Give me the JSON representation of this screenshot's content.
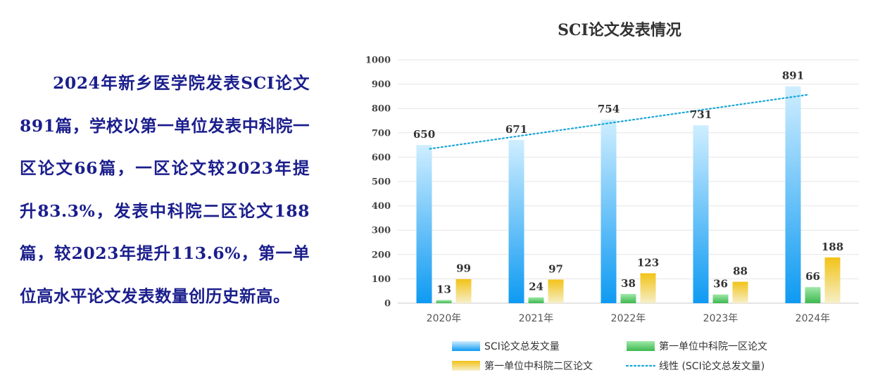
{
  "summary": {
    "text": "2024年新乡医学院发表SCI论文891篇，学校以第一单位发表中科院一区论文66篇，一区论文较2023年提升83.3%，发表中科院二区论文188篇，较2023年提升113.6%，第一单位高水平论文发表数量创历史新高。"
  },
  "colors": {
    "text": "#1b1e8c",
    "sci_top": "#cfeeff",
    "sci_bottom": "#0e9af2",
    "q1_top": "#9fe8a8",
    "q1_bottom": "#3db84f",
    "q2_top": "#f6efc8",
    "q2_bottom": "#f2c318",
    "trend": "#1ba6d8"
  },
  "chart_data": {
    "type": "bar",
    "title": "SCI论文发表情况",
    "categories": [
      "2020年",
      "2021年",
      "2022年",
      "2023年",
      "2024年"
    ],
    "ylim": [
      0,
      1000
    ],
    "yticks": [
      0,
      100,
      200,
      300,
      400,
      500,
      600,
      700,
      800,
      900,
      1000
    ],
    "grid": true,
    "legend_position": "bottom",
    "series": [
      {
        "name": "SCI论文总发文量",
        "values": [
          650,
          671,
          754,
          731,
          891
        ]
      },
      {
        "name": "第一单位中科院一区论文",
        "values": [
          13,
          24,
          38,
          36,
          66
        ]
      },
      {
        "name": "第一单位中科院二区论文",
        "values": [
          99,
          97,
          123,
          88,
          188
        ]
      }
    ],
    "trendline": {
      "name": "线性 (SCI论文总发文量)",
      "type": "linear",
      "of_series": "SCI论文总发文量"
    }
  }
}
